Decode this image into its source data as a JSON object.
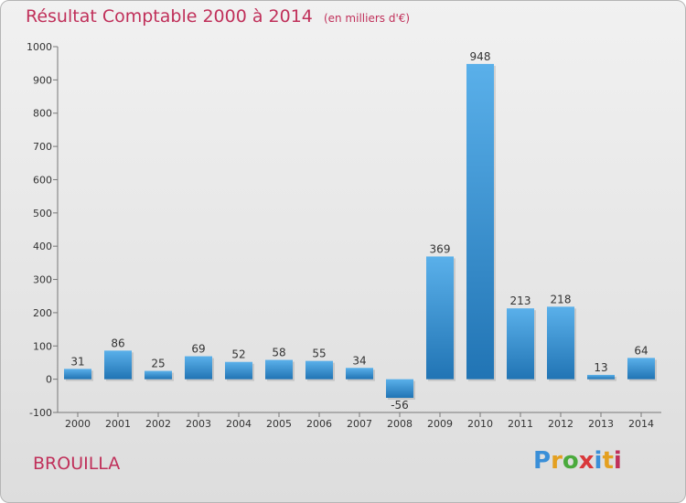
{
  "title": "Résultat Comptable 2000 à 2014",
  "unit": "(en milliers d'€)",
  "commune": "BROUILLA",
  "logo": {
    "letters": [
      "P",
      "r",
      "o",
      "x",
      "i",
      "t",
      "i"
    ],
    "colors": [
      "#3a8fd8",
      "#e4a020",
      "#4aaa3c",
      "#d9383a",
      "#3a8fd8",
      "#e4a020",
      "#c0305a"
    ]
  },
  "colors": {
    "title": "#c0305a",
    "bar_light": "#5aaee8",
    "bar_dark": "#2378b8"
  },
  "chart_data": {
    "type": "bar",
    "categories": [
      "2000",
      "2001",
      "2002",
      "2003",
      "2004",
      "2005",
      "2006",
      "2007",
      "2008",
      "2009",
      "2010",
      "2011",
      "2012",
      "2013",
      "2014"
    ],
    "values": [
      31,
      86,
      25,
      69,
      52,
      58,
      55,
      34,
      -56,
      369,
      948,
      213,
      218,
      13,
      64
    ],
    "ylim": [
      -100,
      1000
    ],
    "yticks": [
      -100,
      0,
      100,
      200,
      300,
      400,
      500,
      600,
      700,
      800,
      900,
      1000
    ],
    "grid": false,
    "data_labels": true
  }
}
